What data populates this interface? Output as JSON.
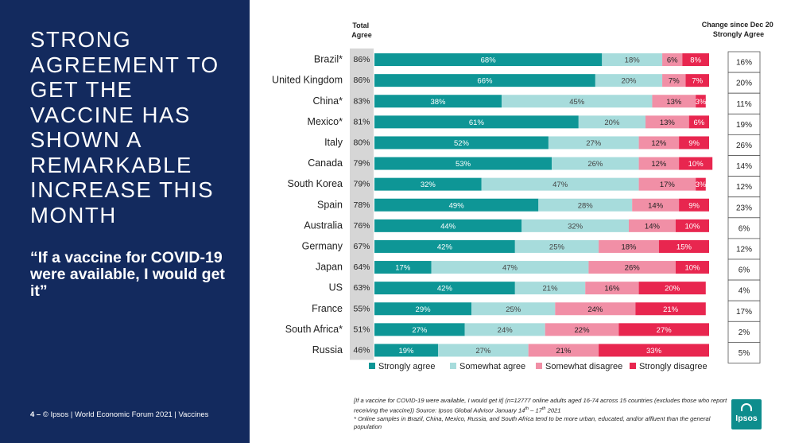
{
  "slide": {
    "headline": "STRONG AGREEMENT TO GET THE VACCINE HAS SHOWN A REMARKABLE INCREASE THIS MONTH",
    "quote": "“If a vaccine for COVID-19 were available, I would get it”",
    "footer_number": "4 –",
    "footer_text": "© Ipsos | World Economic Forum 2021 | Vaccines",
    "note_line1": "[If a vaccine for COVID-19 were available, I would get it] (n=12777 online adults aged 16-74 across 15 countries (excludes those who report receiving the vaccine)) Source: Ipsos Global Advisor January 14",
    "note_sup1": "th",
    "note_mid": " – 17",
    "note_sup2": "th",
    "note_line2": " 2021",
    "note_line3": "* Online samples in Brazil, China, Mexico, Russia, and South Africa tend to be more urban, educated, and/or affluent than the general population",
    "logo_text": "Ipsos"
  },
  "chart_data": {
    "type": "bar",
    "orientation": "horizontal",
    "stacked": true,
    "total_header": "Total Agree",
    "change_header": "Change since Dec 20 Strongly Agree",
    "categories": [
      "Brazil*",
      "United Kingdom",
      "China*",
      "Mexico*",
      "Italy",
      "Canada",
      "South Korea",
      "Spain",
      "Australia",
      "Germany",
      "Japan",
      "US",
      "France",
      "South Africa*",
      "Russia"
    ],
    "total_agree": [
      "86%",
      "86%",
      "83%",
      "81%",
      "80%",
      "79%",
      "79%",
      "78%",
      "76%",
      "67%",
      "64%",
      "63%",
      "55%",
      "51%",
      "46%"
    ],
    "change_strongly_agree": [
      "16%",
      "20%",
      "11%",
      "19%",
      "26%",
      "14%",
      "12%",
      "23%",
      "6%",
      "12%",
      "6%",
      "4%",
      "17%",
      "2%",
      "5%"
    ],
    "series": [
      {
        "name": "Strongly agree",
        "color": "#0e9696",
        "label_color": "#ffffff",
        "values": [
          68,
          66,
          38,
          61,
          52,
          53,
          32,
          49,
          44,
          42,
          17,
          42,
          29,
          27,
          19
        ]
      },
      {
        "name": "Somewhat agree",
        "color": "#a7dcdc",
        "label_color": "#444444",
        "values": [
          18,
          20,
          45,
          20,
          27,
          26,
          47,
          28,
          32,
          25,
          47,
          21,
          25,
          24,
          27
        ]
      },
      {
        "name": "Somewhat disagree",
        "color": "#f18fa6",
        "label_color": "#222222",
        "values": [
          6,
          7,
          13,
          13,
          12,
          12,
          17,
          14,
          14,
          18,
          26,
          16,
          24,
          22,
          21
        ]
      },
      {
        "name": "Strongly disagree",
        "color": "#e8264f",
        "label_color": "#ffffff",
        "values": [
          8,
          7,
          3,
          6,
          9,
          10,
          3,
          9,
          10,
          15,
          10,
          20,
          21,
          27,
          33
        ]
      }
    ],
    "xlim": [
      0,
      100
    ],
    "legend_position": "bottom",
    "grid": false
  }
}
